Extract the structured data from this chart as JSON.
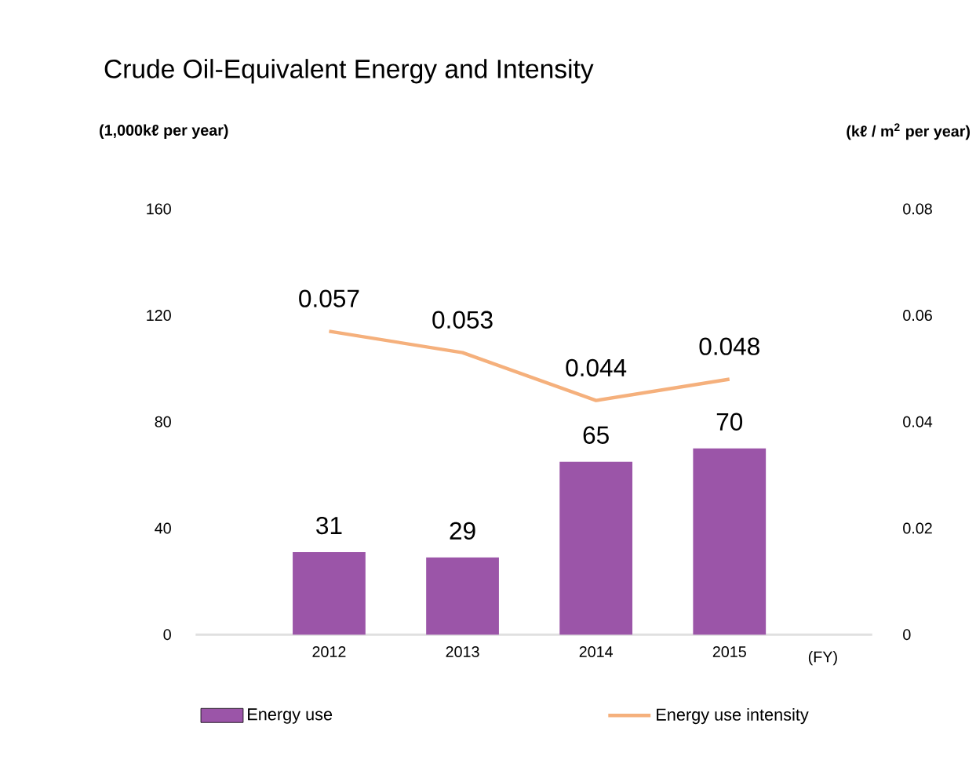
{
  "chart_data": {
    "type": "bar",
    "title": "Crude Oil-Equivalent Energy and Intensity",
    "ylabel": "(1,000kℓ per year)",
    "y2label": "(kℓ / m$^{2}$ per year)",
    "categories": [
      "2012",
      "2013",
      "2014",
      "2015"
    ],
    "series": [
      {
        "name": "Energy use",
        "color": "#9b55a8",
        "values": [
          31,
          29,
          65,
          70
        ]
      },
      {
        "name": "Energy use intensity",
        "type": "line",
        "axis": "y2",
        "color": "#f5b07c",
        "values": [
          0.057,
          0.053,
          0.044,
          0.048
        ]
      }
    ],
    "ylim": [
      0,
      160
    ],
    "yticks": [
      0,
      40,
      80,
      120,
      160
    ],
    "y2lim": [
      0,
      0.08
    ],
    "y2ticks": [
      0,
      0.02,
      0.04,
      0.06,
      0.08
    ],
    "data_labels": true,
    "legend": "bottom",
    "grid": false,
    "annotations": [
      "(FY)"
    ]
  }
}
